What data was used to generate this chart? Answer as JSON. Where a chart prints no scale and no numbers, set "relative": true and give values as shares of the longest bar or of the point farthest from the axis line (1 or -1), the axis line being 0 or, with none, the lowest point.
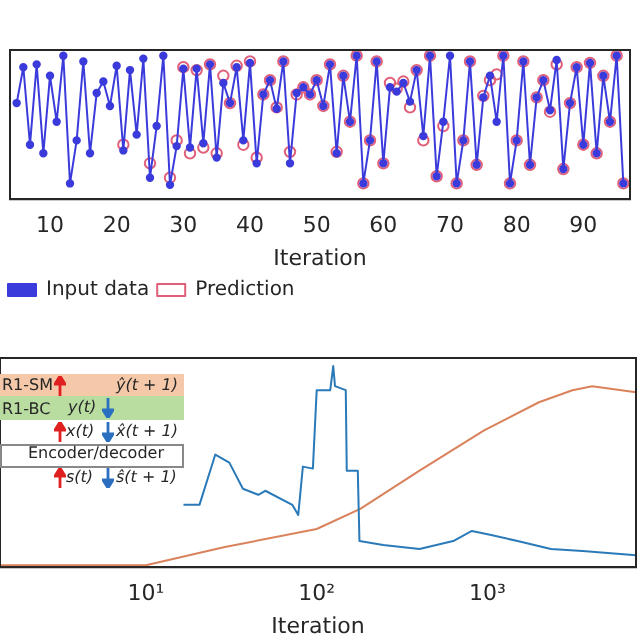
{
  "chart_data": [
    {
      "type": "line",
      "xlabel": "Iteration",
      "relative": true,
      "xlim": [
        4,
        97
      ],
      "xticks": [
        10,
        20,
        30,
        40,
        50,
        60,
        70,
        80,
        90
      ],
      "tick_labels": "x",
      "legend": "bottom left",
      "grid": false,
      "series": [
        {
          "name": "Input data",
          "color": "#3b3bdc",
          "marker": "circle",
          "x": [
            5,
            6,
            7,
            8,
            9,
            10,
            11,
            12,
            13,
            14,
            15,
            16,
            17,
            18,
            19,
            20,
            21,
            22,
            23,
            24,
            25,
            26,
            27,
            28,
            29,
            30,
            31,
            32,
            33,
            34,
            35,
            36,
            37,
            38,
            39,
            40,
            41,
            42,
            43,
            44,
            45,
            46,
            47,
            48,
            49,
            50,
            51,
            52,
            53,
            54,
            55,
            56,
            57,
            58,
            59,
            60,
            61,
            62,
            63,
            64,
            65,
            66,
            67,
            68,
            69,
            70,
            71,
            72,
            73,
            74,
            75,
            76,
            77,
            78,
            79,
            80,
            81,
            82,
            83,
            84,
            85,
            86,
            87,
            88,
            89,
            90,
            91,
            92,
            93,
            94,
            95,
            96
          ],
          "values": [
            0.67,
            0.92,
            0.38,
            0.94,
            0.32,
            0.86,
            0.54,
            1.0,
            0.11,
            0.41,
            0.96,
            0.32,
            0.74,
            0.82,
            0.65,
            0.93,
            0.34,
            0.9,
            0.45,
            0.98,
            0.15,
            0.51,
            1.0,
            0.1,
            0.37,
            0.91,
            0.36,
            0.91,
            0.39,
            0.94,
            0.29,
            0.81,
            0.67,
            0.92,
            0.41,
            0.95,
            0.25,
            0.73,
            0.83,
            0.63,
            0.96,
            0.25,
            0.74,
            0.78,
            0.73,
            0.83,
            0.65,
            0.94,
            0.32,
            0.86,
            0.54,
            1.0,
            0.11,
            0.41,
            0.96,
            0.25,
            0.78,
            0.75,
            0.81,
            0.68,
            0.9,
            0.44,
            1.0,
            0.16,
            0.54,
            1.0,
            0.11,
            0.41,
            0.96,
            0.24,
            0.71,
            0.86,
            0.54,
            1.0,
            0.11,
            0.41,
            0.96,
            0.24,
            0.71,
            0.83,
            0.62,
            0.97,
            0.21,
            0.67,
            0.92,
            0.38,
            0.95,
            0.32,
            0.86,
            0.54,
            1.0,
            0.11
          ]
        },
        {
          "name": "Prediction",
          "type": "scatter",
          "color": "#e0607a",
          "marker": "circle",
          "x": [
            21,
            25,
            28,
            29,
            30,
            31,
            32,
            33,
            34,
            35,
            36,
            37,
            38,
            39,
            40,
            41,
            42,
            43,
            44,
            45,
            46,
            47,
            48,
            49,
            50,
            51,
            52,
            53,
            54,
            55,
            56,
            57,
            58,
            59,
            60,
            61,
            62,
            63,
            64,
            65,
            66,
            67,
            68,
            69,
            71,
            72,
            73,
            74,
            75,
            76,
            77,
            78,
            79,
            80,
            81,
            82,
            83,
            84,
            85,
            86,
            87,
            88,
            89,
            90,
            91,
            92,
            93,
            94,
            95,
            96
          ],
          "values": [
            0.38,
            0.25,
            0.15,
            0.41,
            0.92,
            0.32,
            0.9,
            0.36,
            0.94,
            0.32,
            0.86,
            0.67,
            0.93,
            0.38,
            0.96,
            0.29,
            0.73,
            0.83,
            0.64,
            0.96,
            0.33,
            0.73,
            0.78,
            0.73,
            0.83,
            0.65,
            0.94,
            0.33,
            0.86,
            0.54,
            1.0,
            0.11,
            0.41,
            0.96,
            0.25,
            0.81,
            0.77,
            0.82,
            0.64,
            0.9,
            0.41,
            1.0,
            0.16,
            0.51,
            0.11,
            0.41,
            0.96,
            0.24,
            0.72,
            0.83,
            0.87,
            1.0,
            0.11,
            0.41,
            0.96,
            0.24,
            0.71,
            0.83,
            0.61,
            0.94,
            0.21,
            0.67,
            0.92,
            0.38,
            0.95,
            0.32,
            0.86,
            0.54,
            1.0,
            0.11
          ]
        }
      ]
    },
    {
      "type": "line",
      "xlabel": "Iteration",
      "relative": true,
      "log": "x",
      "xlim": [
        1.4,
        7400
      ],
      "xticks": [
        {
          "value": 10,
          "label": "10¹"
        },
        {
          "value": 100,
          "label": "10²"
        },
        {
          "value": 1000,
          "label": "10³"
        }
      ],
      "tick_labels": "x",
      "grid": false,
      "annotations": [
        "R1-SM",
        "R1-BC",
        "ŷ(t + 1)",
        "y(t)",
        "x(t)",
        "x̂(t + 1)",
        "Encoder/decoder",
        "s(t)",
        "ŝ(t + 1)"
      ],
      "series": [
        {
          "type": "line",
          "color": "#2a7ab9",
          "marker": "none",
          "x": [
            16.6,
            20.6,
            25.5,
            30.8,
            37,
            45.5,
            50,
            72,
            78,
            83,
            95,
            100,
            120,
            125,
            128,
            148,
            150,
            174,
            178,
            245,
            400,
            630,
            810,
            1050,
            1500,
            2350,
            3600,
            7400
          ],
          "values": [
            0.31,
            0.31,
            0.56,
            0.52,
            0.39,
            0.36,
            0.38,
            0.31,
            0.26,
            0.5,
            0.49,
            0.88,
            0.88,
            1.0,
            0.9,
            0.88,
            0.48,
            0.48,
            0.13,
            0.11,
            0.09,
            0.13,
            0.18,
            0.16,
            0.13,
            0.09,
            0.08,
            0.06
          ]
        },
        {
          "type": "line",
          "color": "#d9825b",
          "marker": "none",
          "x": [
            1.4,
            10,
            29,
            100,
            180,
            400,
            955,
            2000,
            3140,
            4100,
            7400
          ],
          "values": [
            0.01,
            0.01,
            0.1,
            0.19,
            0.29,
            0.48,
            0.68,
            0.82,
            0.88,
            0.9,
            0.87
          ]
        }
      ]
    }
  ]
}
